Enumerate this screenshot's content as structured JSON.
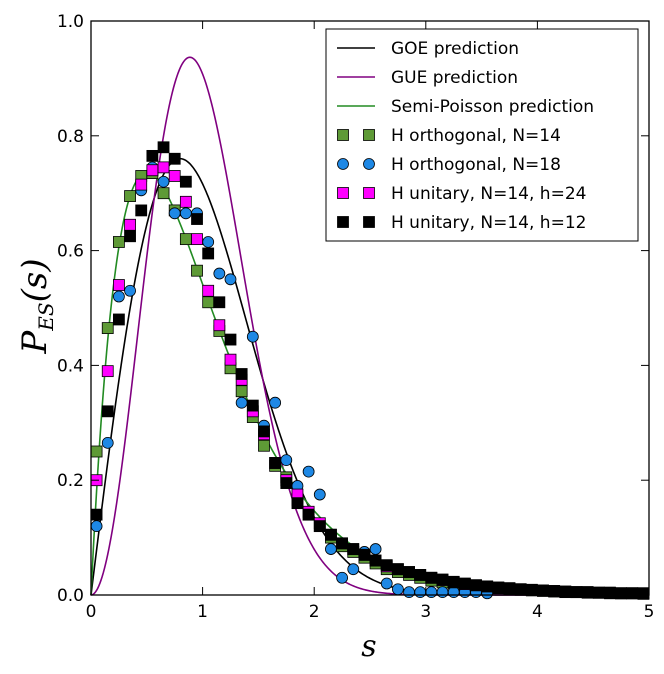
{
  "chart_data": {
    "type": "line",
    "title": "",
    "xlabel": "s",
    "ylabel": {
      "main": "P",
      "subscript": "ES",
      "argument": "(s)"
    },
    "xlim": [
      0,
      5
    ],
    "ylim": [
      0,
      1.0
    ],
    "x_ticks": [
      "0",
      "1",
      "2",
      "3",
      "4",
      "5"
    ],
    "y_ticks": [
      "0.0",
      "0.2",
      "0.4",
      "0.6",
      "0.8",
      "1.0"
    ],
    "grid": false,
    "legend_position": "top-right",
    "curves": [
      {
        "name": "GOE prediction",
        "formula": "goe",
        "color": "#000000"
      },
      {
        "name": "GUE prediction",
        "formula": "gue",
        "color": "#800080"
      },
      {
        "name": "Semi-Poisson prediction",
        "formula": "semi-poisson",
        "color": "#228b22"
      }
    ],
    "series": [
      {
        "name": "H orthogonal, N=14",
        "marker": "square",
        "color": "#5e9a36",
        "x": [
          0.05,
          0.15,
          0.25,
          0.35,
          0.45,
          0.55,
          0.65,
          0.75,
          0.85,
          0.95,
          1.05,
          1.15,
          1.25,
          1.35,
          1.45,
          1.55,
          1.65,
          1.75,
          1.85,
          1.95,
          2.05,
          2.15,
          2.25,
          2.35,
          2.45,
          2.55,
          2.65,
          2.75,
          2.85,
          2.95,
          3.05,
          3.15,
          3.25,
          3.35,
          3.45,
          3.55,
          3.65,
          3.75,
          3.85,
          3.95,
          4.05,
          4.15,
          4.25,
          4.35,
          4.45,
          4.55,
          4.65,
          4.75,
          4.85,
          4.95
        ],
        "y": [
          0.25,
          0.465,
          0.615,
          0.695,
          0.73,
          0.735,
          0.7,
          0.67,
          0.62,
          0.565,
          0.51,
          0.46,
          0.395,
          0.355,
          0.31,
          0.26,
          0.225,
          0.205,
          0.165,
          0.14,
          0.12,
          0.1,
          0.085,
          0.075,
          0.065,
          0.055,
          0.045,
          0.04,
          0.035,
          0.03,
          0.025,
          0.022,
          0.02,
          0.017,
          0.015,
          0.013,
          0.012,
          0.01,
          0.009,
          0.008,
          0.007,
          0.006,
          0.005,
          0.005,
          0.004,
          0.004,
          0.003,
          0.003,
          0.003,
          0.002
        ]
      },
      {
        "name": "H orthogonal, N=18",
        "marker": "circle",
        "color": "#1e88e5",
        "x": [
          0.05,
          0.15,
          0.25,
          0.35,
          0.45,
          0.55,
          0.65,
          0.75,
          0.85,
          0.95,
          1.05,
          1.15,
          1.25,
          1.35,
          1.45,
          1.55,
          1.65,
          1.75,
          1.85,
          1.95,
          2.05,
          2.15,
          2.25,
          2.35,
          2.45,
          2.55,
          2.65,
          2.75,
          2.85,
          2.95,
          3.05,
          3.15,
          3.25,
          3.35,
          3.45,
          3.55
        ],
        "y": [
          0.12,
          0.265,
          0.52,
          0.53,
          0.705,
          0.745,
          0.72,
          0.665,
          0.665,
          0.665,
          0.615,
          0.56,
          0.55,
          0.335,
          0.45,
          0.295,
          0.335,
          0.235,
          0.19,
          0.215,
          0.175,
          0.08,
          0.03,
          0.045,
          0.075,
          0.08,
          0.02,
          0.01,
          0.005,
          0.005,
          0.005,
          0.005,
          0.005,
          0.005,
          0.005,
          0.003
        ]
      },
      {
        "name": "H unitary, N=14, h=24",
        "marker": "square",
        "color": "#ff00ff",
        "x": [
          0.05,
          0.15,
          0.25,
          0.35,
          0.45,
          0.55,
          0.65,
          0.75,
          0.85,
          0.95,
          1.05,
          1.15,
          1.25,
          1.35,
          1.45,
          1.55,
          1.65,
          1.75,
          1.85,
          1.95,
          2.05,
          2.15,
          2.25,
          2.35,
          2.45,
          2.55,
          2.65,
          2.75,
          2.85,
          2.95,
          3.05,
          3.15,
          3.25,
          3.35,
          3.45,
          3.55,
          3.65,
          3.75,
          3.85,
          3.95,
          4.05,
          4.15,
          4.25,
          4.35,
          4.45,
          4.55,
          4.65,
          4.75,
          4.85,
          4.95
        ],
        "y": [
          0.2,
          0.39,
          0.54,
          0.645,
          0.715,
          0.74,
          0.745,
          0.73,
          0.685,
          0.62,
          0.53,
          0.47,
          0.41,
          0.375,
          0.32,
          0.28,
          0.23,
          0.2,
          0.175,
          0.145,
          0.125,
          0.105,
          0.09,
          0.08,
          0.07,
          0.06,
          0.05,
          0.045,
          0.04,
          0.035,
          0.03,
          0.026,
          0.022,
          0.019,
          0.017,
          0.015,
          0.013,
          0.011,
          0.01,
          0.009,
          0.008,
          0.007,
          0.006,
          0.005,
          0.005,
          0.004,
          0.004,
          0.003,
          0.003,
          0.003
        ]
      },
      {
        "name": "H unitary, N=14, h=12",
        "marker": "square",
        "color": "#000000",
        "x": [
          0.05,
          0.15,
          0.25,
          0.35,
          0.45,
          0.55,
          0.65,
          0.75,
          0.85,
          0.95,
          1.05,
          1.15,
          1.25,
          1.35,
          1.45,
          1.55,
          1.65,
          1.75,
          1.85,
          1.95,
          2.05,
          2.15,
          2.25,
          2.35,
          2.45,
          2.55,
          2.65,
          2.75,
          2.85,
          2.95,
          3.05,
          3.15,
          3.25,
          3.35,
          3.45,
          3.55,
          3.65,
          3.75,
          3.85,
          3.95,
          4.05,
          4.15,
          4.25,
          4.35,
          4.45,
          4.55,
          4.65,
          4.75,
          4.85,
          4.95
        ],
        "y": [
          0.14,
          0.32,
          0.48,
          0.625,
          0.67,
          0.765,
          0.78,
          0.76,
          0.72,
          0.655,
          0.595,
          0.51,
          0.445,
          0.385,
          0.33,
          0.285,
          0.23,
          0.195,
          0.16,
          0.14,
          0.12,
          0.105,
          0.09,
          0.08,
          0.07,
          0.06,
          0.052,
          0.045,
          0.04,
          0.035,
          0.03,
          0.027,
          0.023,
          0.02,
          0.017,
          0.015,
          0.013,
          0.012,
          0.01,
          0.009,
          0.008,
          0.007,
          0.006,
          0.005,
          0.005,
          0.004,
          0.004,
          0.003,
          0.003,
          0.003
        ]
      }
    ]
  }
}
